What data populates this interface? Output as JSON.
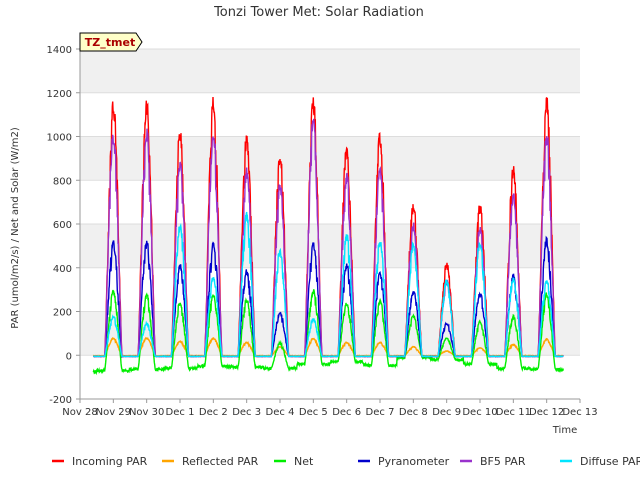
{
  "chart_data": {
    "type": "line",
    "title": "Tonzi Tower Met: Solar Radiation",
    "xlabel": "Time",
    "ylabel": "PAR (umol/m2/s) / Net and Solar (W/m2)",
    "station_tag": "TZ_tmet",
    "xlim": [
      0,
      15
    ],
    "ylim": [
      -200,
      1400
    ],
    "x_ticks": [
      {
        "x": 0,
        "label": "Nov 28"
      },
      {
        "x": 1,
        "label": "Nov 29"
      },
      {
        "x": 2,
        "label": "Nov 30"
      },
      {
        "x": 3,
        "label": "Dec 1"
      },
      {
        "x": 4,
        "label": "Dec 2"
      },
      {
        "x": 5,
        "label": "Dec 3"
      },
      {
        "x": 6,
        "label": "Dec 4"
      },
      {
        "x": 7,
        "label": "Dec 5"
      },
      {
        "x": 8,
        "label": "Dec 6"
      },
      {
        "x": 9,
        "label": "Dec 7"
      },
      {
        "x": 10,
        "label": "Dec 8"
      },
      {
        "x": 11,
        "label": "Dec 9"
      },
      {
        "x": 12,
        "label": "Dec 10"
      },
      {
        "x": 13,
        "label": "Dec 11"
      },
      {
        "x": 14,
        "label": "Dec 12"
      },
      {
        "x": 15,
        "label": "Dec 13"
      }
    ],
    "y_ticks": [
      -200,
      0,
      200,
      400,
      600,
      800,
      1000,
      1200,
      1400
    ],
    "grid": true,
    "legend_position": "bottom",
    "day_centers": [
      1.0,
      2.0,
      3.0,
      4.0,
      5.0,
      6.0,
      7.0,
      8.0,
      9.0,
      10.0,
      11.0,
      12.0,
      13.0,
      14.0
    ],
    "x_start": 0.4,
    "x_end": 14.5,
    "series": [
      {
        "name": "Incoming PAR",
        "color": "#ff0000",
        "night": -5,
        "peaks": [
          1180,
          1180,
          1040,
          1190,
          1025,
          945,
          1190,
          965,
          1030,
          700,
          430,
          700,
          870,
          1200
        ]
      },
      {
        "name": "Reflected PAR",
        "color": "#ffa500",
        "night": -2,
        "peaks": [
          80,
          80,
          65,
          80,
          60,
          40,
          80,
          60,
          60,
          40,
          20,
          35,
          50,
          75
        ]
      },
      {
        "name": "Net",
        "color": "#00ee00",
        "night": -65,
        "nights": [
          -75,
          -70,
          -65,
          -60,
          -50,
          -55,
          -60,
          -40,
          -30,
          -45,
          -10,
          -20,
          -40,
          -60,
          -65
        ],
        "peaks": [
          300,
          285,
          250,
          285,
          260,
          60,
          305,
          245,
          255,
          185,
          80,
          160,
          185,
          290
        ]
      },
      {
        "name": "Pyranometer",
        "color": "#0000cc",
        "night": -5,
        "peaks": [
          525,
          525,
          420,
          520,
          395,
          200,
          525,
          420,
          380,
          300,
          150,
          290,
          370,
          540
        ]
      },
      {
        "name": "BF5 PAR",
        "color": "#9932cc",
        "night": -5,
        "peaks": [
          1030,
          1040,
          890,
          1040,
          860,
          800,
          1110,
          845,
          880,
          610,
          350,
          600,
          750,
          1030
        ]
      },
      {
        "name": "Diffuse PAR",
        "color": "#00e5ff",
        "night": -5,
        "peaks": [
          180,
          150,
          610,
          360,
          660,
          490,
          170,
          560,
          530,
          520,
          350,
          530,
          360,
          350
        ]
      }
    ]
  }
}
